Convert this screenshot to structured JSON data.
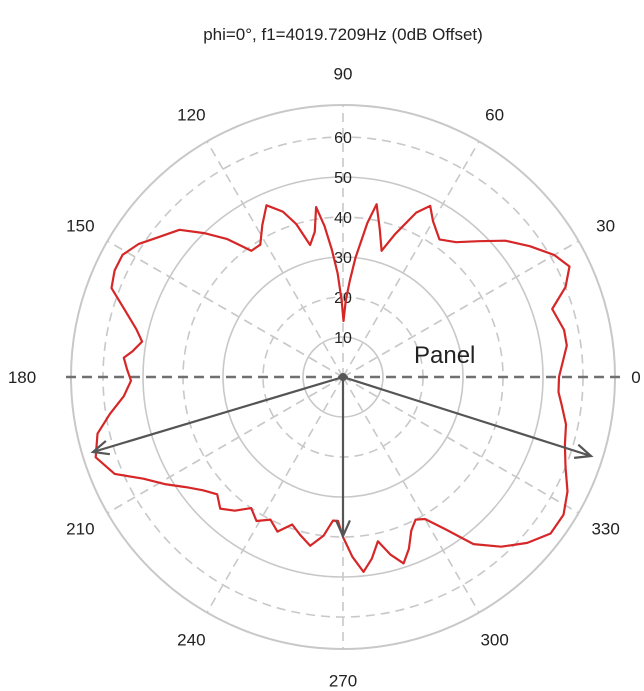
{
  "chart_data": {
    "type": "polar-line",
    "title": "phi=0°, f1=4019.7209Hz (0dB Offset)",
    "angle_ticks": [
      "0",
      "30",
      "60",
      "90",
      "120",
      "150",
      "180",
      "210",
      "240",
      "270",
      "300",
      "330"
    ],
    "radial_ticks": [
      "10",
      "20",
      "30",
      "40",
      "50",
      "60"
    ],
    "rlim": [
      0,
      68
    ],
    "grid": true,
    "series": [
      {
        "color": "#d62728",
        "points": [
          [
            0,
            54
          ],
          [
            8,
            56.5
          ],
          [
            12,
            56.5
          ],
          [
            18,
            55
          ],
          [
            22,
            60
          ],
          [
            26,
            63
          ],
          [
            30,
            61
          ],
          [
            35,
            57
          ],
          [
            40,
            53
          ],
          [
            45,
            48
          ],
          [
            50,
            44
          ],
          [
            55,
            42
          ],
          [
            60,
            45
          ],
          [
            63,
            48
          ],
          [
            66,
            45
          ],
          [
            70,
            38
          ],
          [
            73,
            33
          ],
          [
            76,
            38
          ],
          [
            79,
            44
          ],
          [
            81,
            39
          ],
          [
            84,
            30
          ],
          [
            86,
            24
          ],
          [
            88,
            19
          ],
          [
            89.5,
            14
          ],
          [
            91,
            19
          ],
          [
            93,
            26
          ],
          [
            95,
            32
          ],
          [
            97,
            38
          ],
          [
            99,
            43
          ],
          [
            101,
            37
          ],
          [
            104,
            34
          ],
          [
            107,
            40
          ],
          [
            110,
            44
          ],
          [
            114,
            47
          ],
          [
            118,
            43
          ],
          [
            122,
            39
          ],
          [
            126,
            39
          ],
          [
            130,
            45
          ],
          [
            134,
            50
          ],
          [
            138,
            55
          ],
          [
            143,
            58
          ],
          [
            147,
            61
          ],
          [
            151,
            63
          ],
          [
            155,
            63
          ],
          [
            159,
            62
          ],
          [
            163,
            57
          ],
          [
            167,
            53
          ],
          [
            170,
            51
          ],
          [
            173,
            53
          ],
          [
            175,
            55
          ],
          [
            178,
            54
          ],
          [
            181,
            53
          ],
          [
            185,
            55
          ],
          [
            189,
            59
          ],
          [
            193,
            63
          ],
          [
            198,
            65
          ],
          [
            203,
            62
          ],
          [
            207,
            56
          ],
          [
            211,
            52
          ],
          [
            215,
            48
          ],
          [
            219,
            45
          ],
          [
            223,
            43
          ],
          [
            227,
            45
          ],
          [
            231,
            43
          ],
          [
            235,
            40
          ],
          [
            239,
            42
          ],
          [
            243,
            40
          ],
          [
            247,
            42
          ],
          [
            251,
            39
          ],
          [
            255,
            41
          ],
          [
            259,
            43
          ],
          [
            263,
            40
          ],
          [
            266,
            36
          ],
          [
            268,
            36
          ],
          [
            270,
            40
          ],
          [
            273,
            45
          ],
          [
            276,
            49
          ],
          [
            279,
            46
          ],
          [
            282,
            42
          ],
          [
            285,
            46
          ],
          [
            288,
            49
          ],
          [
            291,
            46
          ],
          [
            294,
            42
          ],
          [
            297,
            40
          ],
          [
            300,
            41
          ],
          [
            304,
            46
          ],
          [
            308,
            53
          ],
          [
            313,
            58
          ],
          [
            318,
            62
          ],
          [
            323,
            65
          ],
          [
            328,
            65
          ],
          [
            333,
            63
          ],
          [
            338,
            60
          ],
          [
            343,
            58
          ],
          [
            348,
            57
          ],
          [
            353,
            55
          ],
          [
            356,
            54
          ],
          [
            360,
            54
          ]
        ]
      }
    ],
    "arrows": [
      {
        "angle": 0,
        "r": 0
      }
    ],
    "annotation": "Panel"
  }
}
